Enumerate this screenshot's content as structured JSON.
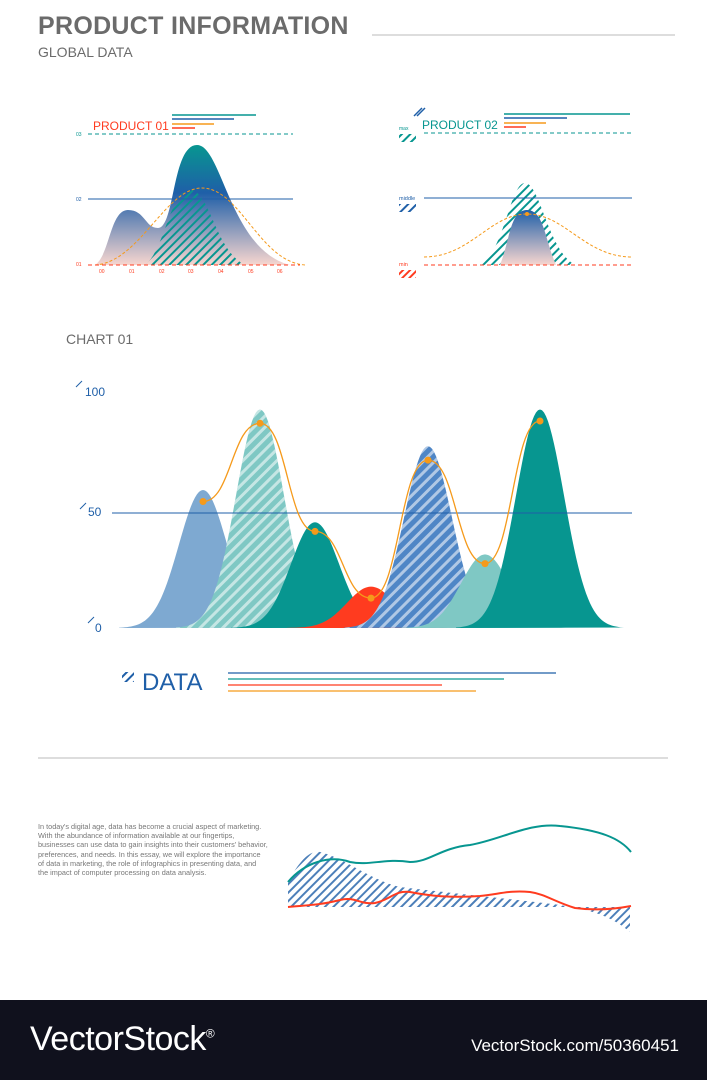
{
  "header": {
    "title": "PRODUCT INFORMATION",
    "subtitle": "GLOBAL DATA"
  },
  "product01": {
    "title": "PRODUCT 01",
    "y_ticks": [
      "03",
      "02",
      "01"
    ],
    "x_ticks": [
      "00",
      "01",
      "02",
      "03",
      "04",
      "05",
      "06"
    ]
  },
  "product02": {
    "title": "PRODUCT 02",
    "levels": [
      "max",
      "middle",
      "min"
    ]
  },
  "chart01_label": "CHART 01",
  "legend": {
    "label": "DATA"
  },
  "body_text": "In today's digital age, data has become a crucial aspect of marketing. With the abundance of information available at our fingertips, businesses can use data to gain insights into their customers' behavior, preferences, and needs. In this essay, we will explore the importance of data in marketing, the role of infographics in presenting data, and the impact of computer processing on data analysis.",
  "footer": {
    "logo": "VectorStock",
    "logo_mark": "®",
    "url": "VectorStock.com/50360451"
  },
  "colors": {
    "teal": "#079690",
    "blue": "#1f5fa8",
    "light_blue": "#7ea9d1",
    "light_teal": "#7fc8c4",
    "red": "#ff3b1f",
    "orange": "#f59a1b",
    "gray": "#6b6b6b"
  },
  "chart_data": {
    "type": "area",
    "title": "CHART 01",
    "y_ticks": [
      "0",
      "50",
      "100"
    ],
    "ylim": [
      0,
      100
    ],
    "grid": "single line at 50",
    "series": [
      {
        "peak": 60,
        "color": "#7ea9d1",
        "fill": "solid"
      },
      {
        "peak": 95,
        "color": "#7fc8c4",
        "fill": "hatched"
      },
      {
        "peak": 46,
        "color": "#079690",
        "fill": "solid"
      },
      {
        "peak": 18,
        "color": "#ff3b1f",
        "fill": "solid"
      },
      {
        "peak": 79,
        "color": "#4f86c6",
        "fill": "hatched"
      },
      {
        "peak": 32,
        "color": "#7fc8c4",
        "fill": "solid"
      },
      {
        "peak": 95,
        "color": "#079690",
        "fill": "solid"
      }
    ],
    "line_points": [
      55,
      89,
      42,
      13,
      73,
      28,
      90
    ]
  }
}
